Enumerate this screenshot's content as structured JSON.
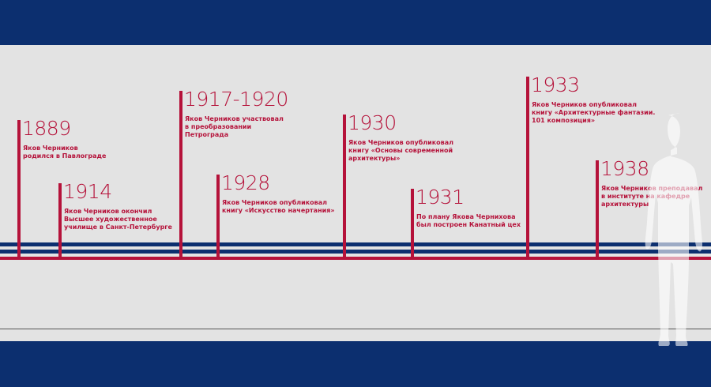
{
  "colors": {
    "primary_blue": "#0c2f6f",
    "accent_red": "#b5123a",
    "background": "#e3e3e3"
  },
  "events": [
    {
      "year": "1889",
      "text": "Яков Черников\nродился в Павлограде"
    },
    {
      "year": "1914",
      "text": "Яков Черников окончил\nВысшее художественное\nучилище в Санкт-Петербурге"
    },
    {
      "year": "1917-1920",
      "text": "Яков Черников участвовал\nв преобразовании\nПетрограда"
    },
    {
      "year": "1928",
      "text": "Яков Черников опубликовал\nкнигу «Искусство начертания»"
    },
    {
      "year": "1930",
      "text": "Яков Черников опубликовал\nкнигу «Основы современной\nархитектуры»"
    },
    {
      "year": "1931",
      "text": "По плану Якова Чернихова\nбыл построен Канатный цех"
    },
    {
      "year": "1933",
      "text": "Яков Черников опубликовал\nкнигу «Архитектурные фантазии.\n101 композиция»"
    },
    {
      "year": "1938",
      "text": "Яков Черников преподавал\nв институте на кафедре\nархитектуры"
    }
  ],
  "decor": {
    "silhouette": "human-silhouette"
  }
}
